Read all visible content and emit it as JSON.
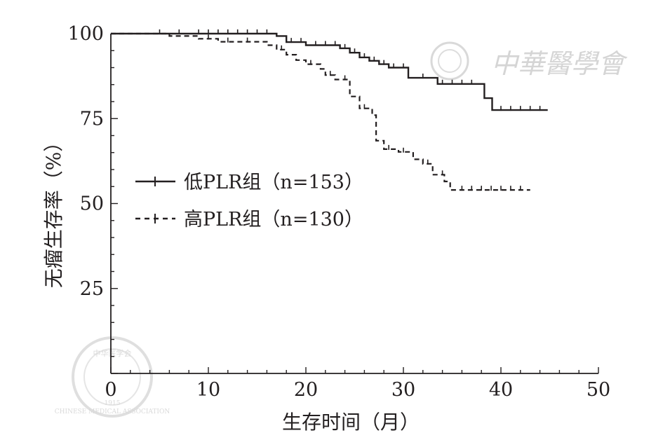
{
  "chart_data": {
    "type": "line",
    "subtype": "kaplan-meier step curve",
    "xlabel": "生存时间（月）",
    "ylabel": "无瘤生存率（%）",
    "xlim": [
      0,
      50
    ],
    "ylim": [
      0,
      100
    ],
    "xticks": [
      0,
      10,
      20,
      30,
      40,
      50
    ],
    "yticks": [
      0,
      25,
      50,
      75,
      100
    ],
    "x_tick_labels": [
      "0",
      "10",
      "20",
      "30",
      "40",
      "50"
    ],
    "y_tick_labels": [
      "25",
      "50",
      "75",
      "100"
    ],
    "grid": false,
    "legend_position": "left-middle",
    "series": [
      {
        "name": "低PLR组（n=153）",
        "style": "solid",
        "color": "#231f20",
        "steps": [
          [
            0,
            100
          ],
          [
            17,
            100
          ],
          [
            17,
            99.3
          ],
          [
            18,
            99.3
          ],
          [
            18,
            97.5
          ],
          [
            20,
            97.5
          ],
          [
            20,
            96.6
          ],
          [
            23.5,
            96.6
          ],
          [
            23.5,
            95.7
          ],
          [
            24.5,
            95.7
          ],
          [
            24.5,
            94.4
          ],
          [
            25.5,
            94.4
          ],
          [
            25.5,
            93
          ],
          [
            26.5,
            93
          ],
          [
            26.5,
            92
          ],
          [
            27.5,
            92
          ],
          [
            27.5,
            91
          ],
          [
            28.5,
            91
          ],
          [
            28.5,
            90
          ],
          [
            30.5,
            90
          ],
          [
            30.5,
            87
          ],
          [
            33.5,
            87
          ],
          [
            33.5,
            85.2
          ],
          [
            38.3,
            85.2
          ],
          [
            38.3,
            81
          ],
          [
            39.1,
            81
          ],
          [
            39.1,
            77.5
          ],
          [
            44.8,
            77.5
          ]
        ],
        "censor_x": [
          5,
          7,
          9,
          10,
          11,
          12,
          13,
          14,
          15,
          16,
          18.5,
          19.5,
          21,
          22,
          23,
          24,
          25,
          26,
          27,
          28,
          29,
          30,
          32,
          34,
          35,
          36,
          37,
          40,
          41,
          42,
          43,
          44
        ]
      },
      {
        "name": "高PLR组（n=130）",
        "style": "dashed",
        "color": "#231f20",
        "steps": [
          [
            0,
            100
          ],
          [
            6,
            100
          ],
          [
            6,
            99.3
          ],
          [
            9,
            99.3
          ],
          [
            9,
            98.5
          ],
          [
            11,
            98.5
          ],
          [
            11,
            97.6
          ],
          [
            16,
            97.6
          ],
          [
            16,
            96.6
          ],
          [
            17,
            96.6
          ],
          [
            17,
            95.3
          ],
          [
            18,
            95.3
          ],
          [
            18,
            93.8
          ],
          [
            19,
            93.8
          ],
          [
            19,
            92.2
          ],
          [
            20,
            92.2
          ],
          [
            20,
            91
          ],
          [
            21.5,
            91
          ],
          [
            21.5,
            89.6
          ],
          [
            22,
            89.6
          ],
          [
            22,
            87.8
          ],
          [
            23,
            87.8
          ],
          [
            23,
            86.5
          ],
          [
            24.5,
            86.5
          ],
          [
            24.5,
            81.5
          ],
          [
            25.5,
            81.5
          ],
          [
            25.5,
            78
          ],
          [
            26.8,
            78
          ],
          [
            26.8,
            76
          ],
          [
            27.2,
            76
          ],
          [
            27.2,
            68.5
          ],
          [
            28,
            68.5
          ],
          [
            28,
            66
          ],
          [
            29.5,
            66
          ],
          [
            29.5,
            65.2
          ],
          [
            31,
            65.2
          ],
          [
            31,
            63
          ],
          [
            32,
            63
          ],
          [
            32,
            61.7
          ],
          [
            33,
            61.7
          ],
          [
            33,
            58.5
          ],
          [
            34.2,
            58.5
          ],
          [
            34.2,
            56.5
          ],
          [
            34.8,
            56.5
          ],
          [
            34.8,
            54
          ],
          [
            43,
            54
          ]
        ],
        "censor_x": [
          10,
          12,
          14,
          17.5,
          20.5,
          22.5,
          24,
          26,
          28.5,
          30,
          32.5,
          34,
          36,
          37,
          38,
          39,
          40,
          41,
          42
        ]
      }
    ]
  },
  "watermark": {
    "text": "中華醫學會",
    "seal_text": "中华医学会",
    "seal_ring_text": "CHINESE MEDICAL ASSOCIATION",
    "seal_year": "1915"
  }
}
